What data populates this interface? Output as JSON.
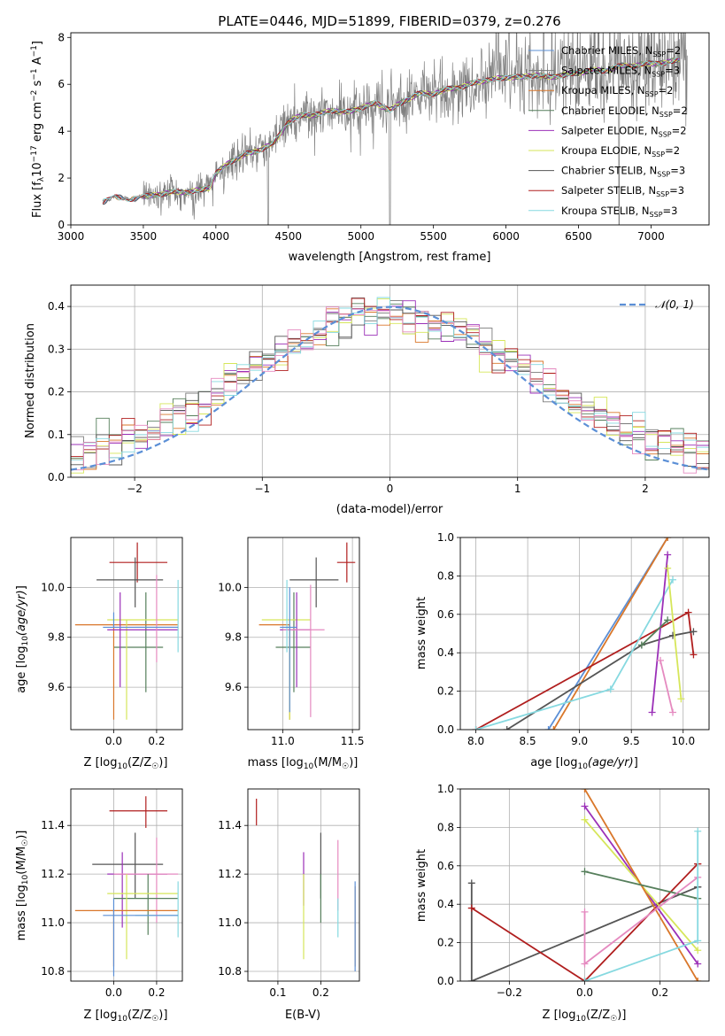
{
  "colors": {
    "chabrier_miles": "#5b8fd6",
    "salpeter_miles": "#7a7a7a",
    "kroupa_miles": "#d9772a",
    "chabrier_elodie": "#567f5c",
    "salpeter_elodie": "#9b30b8",
    "kroupa_elodie": "#d6e65a",
    "chabrier_stelib": "#555555",
    "salpeter_stelib": "#b01e1e",
    "kroupa_stelib": "#86d9e0",
    "pink": "#e58ac0",
    "data": "#808080",
    "gauss": "#5b8fd6",
    "grid": "#b0b0b0"
  },
  "chart_data": [
    {
      "id": "spectrum",
      "type": "line",
      "title": "PLATE=0446, MJD=51899, FIBERID=0379, z=0.276",
      "xlabel": "wavelength [Angstrom, rest frame]",
      "ylabel": "Flux [fλ10⁻¹⁷ erg cm⁻² s⁻¹ A⁻¹]",
      "xlim": [
        3000,
        7400
      ],
      "ylim": [
        0,
        8.2
      ],
      "xticks": [
        "3000",
        "3500",
        "4000",
        "4500",
        "5000",
        "5500",
        "6000",
        "6500",
        "7000"
      ],
      "yticks": [
        "0",
        "2",
        "4",
        "6",
        "8"
      ],
      "legend": {
        "placement": "top-right",
        "entries": [
          {
            "key": "chabrier_miles",
            "label": "Chabrier MILES, NSSP=2"
          },
          {
            "key": "salpeter_miles",
            "label": "Salpeter MILES, NSSP=3"
          },
          {
            "key": "kroupa_miles",
            "label": "Kroupa MILES, NSSP=2"
          },
          {
            "key": "chabrier_elodie",
            "label": "Chabrier ELODIE, NSSP=2"
          },
          {
            "key": "salpeter_elodie",
            "label": "Salpeter ELODIE, NSSP=2"
          },
          {
            "key": "kroupa_elodie",
            "label": "Kroupa ELODIE, NSSP=2"
          },
          {
            "key": "chabrier_stelib",
            "label": "Chabrier STELIB, NSSP=3"
          },
          {
            "key": "salpeter_stelib",
            "label": "Salpeter STELIB, NSSP=3"
          },
          {
            "key": "kroupa_stelib",
            "label": "Kroupa STELIB, NSSP=3"
          }
        ]
      },
      "model_continuum": {
        "x": [
          3200,
          3300,
          3400,
          3500,
          3600,
          3700,
          3800,
          3900,
          3960,
          4000,
          4100,
          4200,
          4300,
          4400,
          4500,
          4600,
          4700,
          4800,
          4900,
          5000,
          5100,
          5200,
          5300,
          5400,
          5500,
          5600,
          5700,
          5800,
          5900,
          6000,
          6100,
          6200,
          6300,
          6400,
          6500,
          6600,
          6700,
          6800,
          6900,
          7000,
          7100,
          7200
        ],
        "y": [
          0.9,
          1.2,
          1.1,
          1.2,
          1.3,
          1.4,
          1.4,
          1.5,
          1.6,
          2.2,
          2.7,
          3.0,
          3.2,
          3.5,
          4.4,
          4.7,
          4.7,
          4.9,
          4.8,
          5.0,
          5.2,
          4.9,
          5.3,
          5.6,
          5.6,
          5.8,
          5.9,
          6.1,
          6.2,
          6.3,
          6.3,
          6.4,
          6.3,
          6.4,
          6.5,
          6.6,
          6.6,
          6.8,
          6.8,
          6.9,
          6.9,
          7.1
        ]
      },
      "observed_sampling": {
        "x_start": 3220,
        "x_end": 7250,
        "note": "noisy data around model; sky lines near 4360, 5200, 6780"
      }
    },
    {
      "id": "residuals",
      "type": "line",
      "xlabel": "(data-model)/error",
      "ylabel": "Normed distribution",
      "xlim": [
        -2.5,
        2.5
      ],
      "ylim": [
        0,
        0.45
      ],
      "xticks": [
        "−2",
        "−1",
        "0",
        "1",
        "2"
      ],
      "yticks": [
        "0.0",
        "0.1",
        "0.2",
        "0.3",
        "0.4"
      ],
      "legend": {
        "placement": "top-right",
        "label": "𝒩(0, 1)"
      },
      "gaussian": {
        "mu": 0,
        "sigma": 1
      }
    },
    {
      "id": "age_vs_Z",
      "type": "scatter",
      "xlabel": "Z [log₁₀(Z/Z☉)]",
      "ylabel": "age  [log₁₀(age/yr)]",
      "xlim": [
        -0.2,
        0.32
      ],
      "ylim": [
        9.43,
        10.2
      ],
      "xticks": [
        "0.0",
        "0.2"
      ],
      "yticks": [
        "9.6",
        "9.8",
        "10.0"
      ],
      "points": [
        {
          "c": "salpeter_stelib",
          "x": 0.11,
          "xe": [
            -0.02,
            0.25
          ],
          "y": 10.1,
          "ye": [
            10.02,
            10.18
          ]
        },
        {
          "c": "chabrier_stelib",
          "x": 0.1,
          "xe": [
            -0.08,
            0.23
          ],
          "y": 10.03,
          "ye": [
            9.92,
            10.12
          ]
        },
        {
          "c": "chabrier_elodie",
          "x": 0.15,
          "xe": [
            0.0,
            0.23
          ],
          "y": 9.76,
          "ye": [
            9.58,
            9.98
          ]
        },
        {
          "c": "kroupa_miles",
          "x": 0.0,
          "xe": [
            -0.18,
            0.3
          ],
          "y": 9.85,
          "ye": [
            9.47,
            9.85
          ]
        },
        {
          "c": "kroupa_elodie",
          "x": 0.06,
          "xe": [
            -0.03,
            0.3
          ],
          "y": 9.87,
          "ye": [
            9.47,
            9.87
          ]
        },
        {
          "c": "salpeter_elodie",
          "x": 0.03,
          "xe": [
            -0.03,
            0.3
          ],
          "y": 9.83,
          "ye": [
            9.6,
            9.98
          ]
        },
        {
          "c": "pink",
          "x": 0.2,
          "xe": [
            0.0,
            0.3
          ],
          "y": 9.84,
          "ye": [
            9.7,
            10.05
          ]
        },
        {
          "c": "kroupa_stelib",
          "x": 0.3,
          "xe": [
            0.1,
            0.3
          ],
          "y": 9.84,
          "ye": [
            9.74,
            10.03
          ]
        },
        {
          "c": "chabrier_miles",
          "x": 0.0,
          "xe": [
            -0.05,
            0.3
          ],
          "y": 9.84,
          "ye": [
            9.84,
            9.9
          ]
        }
      ]
    },
    {
      "id": "age_vs_mass",
      "type": "scatter",
      "xlabel": "mass [log₁₀(M/M☉)]",
      "ylabel": "",
      "xlim": [
        10.75,
        11.55
      ],
      "ylim": [
        9.43,
        10.2
      ],
      "xticks": [
        "11.0",
        "11.5"
      ],
      "yticks": [
        "9.6",
        "9.8",
        "10.0"
      ],
      "points": [
        {
          "c": "salpeter_stelib",
          "x": 11.46,
          "xe": [
            11.39,
            11.52
          ],
          "y": 10.1,
          "ye": [
            10.02,
            10.18
          ]
        },
        {
          "c": "chabrier_stelib",
          "x": 11.24,
          "xe": [
            11.05,
            11.4
          ],
          "y": 10.03,
          "ye": [
            9.92,
            10.12
          ]
        },
        {
          "c": "chabrier_elodie",
          "x": 11.08,
          "xe": [
            10.95,
            11.2
          ],
          "y": 9.76,
          "ye": [
            9.58,
            9.98
          ]
        },
        {
          "c": "kroupa_miles",
          "x": 11.05,
          "xe": [
            10.83,
            11.05
          ],
          "y": 9.85,
          "ye": [
            9.47,
            9.85
          ]
        },
        {
          "c": "kroupa_elodie",
          "x": 11.05,
          "xe": [
            10.85,
            11.2
          ],
          "y": 9.87,
          "ye": [
            9.47,
            9.87
          ]
        },
        {
          "c": "salpeter_elodie",
          "x": 11.1,
          "xe": [
            10.98,
            11.2
          ],
          "y": 9.83,
          "ye": [
            9.6,
            9.98
          ]
        },
        {
          "c": "pink",
          "x": 11.2,
          "xe": [
            11.0,
            11.3
          ],
          "y": 9.83,
          "ye": [
            9.48,
            10.01
          ]
        },
        {
          "c": "kroupa_stelib",
          "x": 11.03,
          "xe": [
            11.0,
            11.05
          ],
          "y": 9.84,
          "ye": [
            9.74,
            10.03
          ]
        },
        {
          "c": "chabrier_miles",
          "x": 11.05,
          "xe": [
            10.98,
            11.1
          ],
          "y": 9.84,
          "ye": [
            9.5,
            10.0
          ]
        }
      ]
    },
    {
      "id": "weight_vs_age",
      "type": "line",
      "xlabel": "age  [log₁₀(age/yr)]",
      "ylabel": "mass weight",
      "xlim": [
        7.85,
        10.25
      ],
      "ylim": [
        0,
        1
      ],
      "xticks": [
        "8.0",
        "8.5",
        "9.0",
        "9.5",
        "10.0"
      ],
      "yticks": [
        "0.0",
        "0.2",
        "0.4",
        "0.6",
        "0.8",
        "1.0"
      ],
      "series": [
        {
          "c": "chabrier_miles",
          "x": [
            8.7,
            9.85
          ],
          "y": [
            0.0,
            1.0
          ]
        },
        {
          "c": "kroupa_miles",
          "x": [
            8.75,
            9.85
          ],
          "y": [
            0.0,
            1.0
          ]
        },
        {
          "c": "salpeter_stelib",
          "x": [
            8.0,
            10.05,
            10.1
          ],
          "y": [
            0.0,
            0.61,
            0.39
          ]
        },
        {
          "c": "chabrier_stelib",
          "x": [
            8.3,
            9.6,
            9.9,
            10.1
          ],
          "y": [
            0.0,
            0.44,
            0.49,
            0.51
          ]
        },
        {
          "c": "kroupa_stelib",
          "x": [
            8.0,
            9.3,
            9.9
          ],
          "y": [
            0.0,
            0.21,
            0.78
          ]
        },
        {
          "c": "salpeter_elodie",
          "x": [
            9.7,
            9.85
          ],
          "y": [
            0.09,
            0.91
          ]
        },
        {
          "c": "kroupa_elodie",
          "x": [
            9.85,
            9.98
          ],
          "y": [
            0.84,
            0.16
          ]
        },
        {
          "c": "pink",
          "x": [
            9.78,
            9.9
          ],
          "y": [
            0.36,
            0.09
          ]
        },
        {
          "c": "chabrier_elodie",
          "x": [
            9.6,
            9.85
          ],
          "y": [
            0.44,
            0.57
          ]
        }
      ]
    },
    {
      "id": "mass_vs_Z",
      "type": "scatter",
      "xlabel": "Z [log₁₀(Z/Z☉)]",
      "ylabel": "mass [log₁₀(M/M☉)]",
      "xlim": [
        -0.2,
        0.32
      ],
      "ylim": [
        10.76,
        11.55
      ],
      "xticks": [
        "0.0",
        "0.2"
      ],
      "yticks": [
        "10.8",
        "11.0",
        "11.2",
        "11.4"
      ],
      "points": [
        {
          "c": "salpeter_stelib",
          "x": 0.15,
          "xe": [
            -0.02,
            0.25
          ],
          "y": 11.46,
          "ye": [
            11.39,
            11.52
          ]
        },
        {
          "c": "chabrier_stelib",
          "x": 0.1,
          "xe": [
            -0.1,
            0.23
          ],
          "y": 11.24,
          "ye": [
            11.1,
            11.37
          ]
        },
        {
          "c": "salpeter_elodie",
          "x": 0.04,
          "xe": [
            -0.03,
            0.25
          ],
          "y": 11.2,
          "ye": [
            10.98,
            11.29
          ]
        },
        {
          "c": "pink",
          "x": 0.2,
          "xe": [
            0.0,
            0.3
          ],
          "y": 11.2,
          "ye": [
            11.0,
            11.35
          ]
        },
        {
          "c": "chabrier_elodie",
          "x": 0.16,
          "xe": [
            0.0,
            0.3
          ],
          "y": 11.1,
          "ye": [
            10.95,
            11.2
          ]
        },
        {
          "c": "kroupa_elodie",
          "x": 0.06,
          "xe": [
            -0.03,
            0.3
          ],
          "y": 11.12,
          "ye": [
            10.85,
            11.2
          ]
        },
        {
          "c": "kroupa_miles",
          "x": 0.0,
          "xe": [
            -0.18,
            0.3
          ],
          "y": 11.05,
          "ye": [
            10.82,
            11.05
          ]
        },
        {
          "c": "kroupa_stelib",
          "x": 0.3,
          "xe": [
            0.1,
            0.3
          ],
          "y": 11.03,
          "ye": [
            10.94,
            11.17
          ]
        },
        {
          "c": "chabrier_miles",
          "x": 0.0,
          "xe": [
            -0.05,
            0.3
          ],
          "y": 11.03,
          "ye": [
            10.78,
            11.1
          ]
        }
      ]
    },
    {
      "id": "mass_vs_ebv",
      "type": "scatter",
      "xlabel": "E(B-V)",
      "ylabel": "",
      "xlim": [
        0.03,
        0.29
      ],
      "ylim": [
        10.76,
        11.55
      ],
      "xticks": [
        "0.1",
        "0.2"
      ],
      "yticks": [
        "10.8",
        "11.0",
        "11.2",
        "11.4"
      ],
      "points": [
        {
          "c": "salpeter_stelib",
          "x": 0.05,
          "y": 11.46,
          "ye": [
            11.4,
            11.51
          ]
        },
        {
          "c": "chabrier_stelib",
          "x": 0.2,
          "y": 11.24,
          "ye": [
            11.1,
            11.37
          ]
        },
        {
          "c": "salpeter_elodie",
          "x": 0.16,
          "y": 11.2,
          "ye": [
            11.07,
            11.29
          ]
        },
        {
          "c": "pink",
          "x": 0.24,
          "y": 11.2,
          "ye": [
            11.05,
            11.34
          ]
        },
        {
          "c": "kroupa_elodie",
          "x": 0.16,
          "y": 11.0,
          "ye": [
            10.85,
            11.2
          ]
        },
        {
          "c": "kroupa_stelib",
          "x": 0.24,
          "y": 11.03,
          "ye": [
            10.94,
            11.1
          ]
        },
        {
          "c": "kroupa_miles",
          "x": 0.28,
          "y": 11.0,
          "ye": [
            10.82,
            11.15
          ]
        },
        {
          "c": "chabrier_miles",
          "x": 0.28,
          "y": 11.0,
          "ye": [
            10.8,
            11.17
          ]
        },
        {
          "c": "chabrier_elodie",
          "x": 0.2,
          "y": 11.1,
          "ye": [
            11.0,
            11.2
          ]
        }
      ]
    },
    {
      "id": "weight_vs_Z",
      "type": "line",
      "xlabel": "Z [log₁₀(Z/Z☉)]",
      "ylabel": "mass weight",
      "xlim": [
        -0.33,
        0.33
      ],
      "ylim": [
        0,
        1
      ],
      "xticks": [
        "−0.2",
        "0.0",
        "0.2"
      ],
      "yticks": [
        "0.0",
        "0.2",
        "0.4",
        "0.6",
        "0.8",
        "1.0"
      ],
      "series": [
        {
          "c": "chabrier_stelib",
          "x": [
            -0.3,
            -0.3,
            0.3,
            0.3
          ],
          "y": [
            0.51,
            0.0,
            0.49,
            0.49
          ]
        },
        {
          "c": "salpeter_stelib",
          "x": [
            -0.3,
            0.0,
            0.3,
            0.3
          ],
          "y": [
            0.38,
            0.0,
            0.61,
            0.61
          ]
        },
        {
          "c": "salpeter_elodie",
          "x": [
            0.0,
            0.3
          ],
          "y": [
            0.91,
            0.09
          ]
        },
        {
          "c": "kroupa_elodie",
          "x": [
            0.0,
            0.3
          ],
          "y": [
            0.84,
            0.16
          ]
        },
        {
          "c": "kroupa_miles",
          "x": [
            0.0,
            0.3
          ],
          "y": [
            1.0,
            0.0
          ]
        },
        {
          "c": "chabrier_elodie",
          "x": [
            0.0,
            0.3
          ],
          "y": [
            0.57,
            0.43
          ]
        },
        {
          "c": "pink",
          "x": [
            0.0,
            0.0,
            0.3
          ],
          "y": [
            0.36,
            0.09,
            0.54
          ]
        },
        {
          "c": "kroupa_stelib",
          "x": [
            0.0,
            0.3,
            0.3
          ],
          "y": [
            0.0,
            0.21,
            0.78
          ]
        }
      ]
    }
  ]
}
